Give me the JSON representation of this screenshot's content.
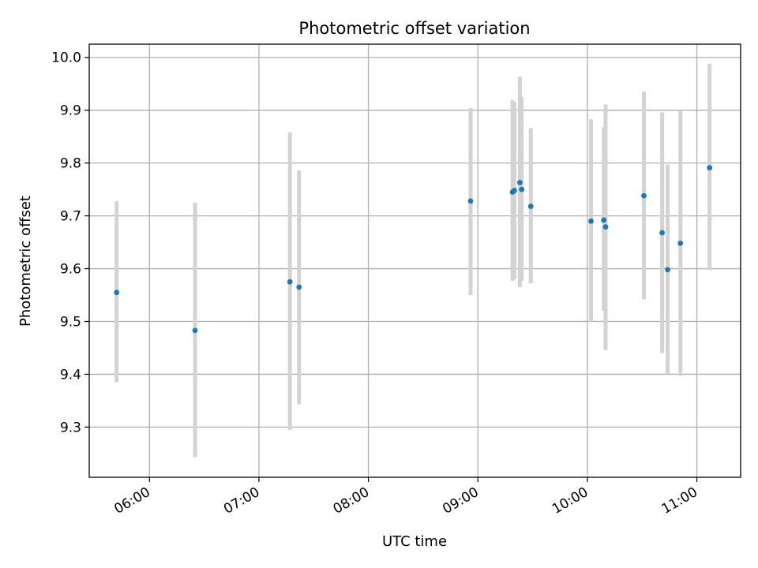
{
  "chart_data": {
    "type": "scatter",
    "title": "Photometric offset variation",
    "xlabel": "UTC time",
    "ylabel": "Photometric offset",
    "x_axis_kind": "time",
    "xlim": [
      "05:27",
      "11:24"
    ],
    "ylim": [
      9.205,
      10.025
    ],
    "grid": true,
    "x_ticks": [
      "06:00",
      "07:00",
      "08:00",
      "09:00",
      "10:00",
      "11:00"
    ],
    "y_ticks": [
      "9.3",
      "9.4",
      "9.5",
      "9.6",
      "9.7",
      "9.8",
      "9.9",
      "10.0"
    ],
    "colors": {
      "points": "#1f77b4",
      "error_bars": "#d3d3d3",
      "grid": "#b0b0b0"
    },
    "series": [
      {
        "points": [
          {
            "x": "05:42",
            "y": 9.555,
            "ylow": 9.385,
            "yhigh": 9.728
          },
          {
            "x": "06:25",
            "y": 9.483,
            "ylow": 9.243,
            "yhigh": 9.725
          },
          {
            "x": "07:17",
            "y": 9.575,
            "ylow": 9.295,
            "yhigh": 9.858
          },
          {
            "x": "07:22",
            "y": 9.565,
            "ylow": 9.343,
            "yhigh": 9.786
          },
          {
            "x": "08:56",
            "y": 9.728,
            "ylow": 9.55,
            "yhigh": 9.904
          },
          {
            "x": "09:19",
            "y": 9.745,
            "ylow": 9.577,
            "yhigh": 9.919
          },
          {
            "x": "09:20",
            "y": 9.748,
            "ylow": 9.58,
            "yhigh": 9.915
          },
          {
            "x": "09:23",
            "y": 9.763,
            "ylow": 9.565,
            "yhigh": 9.963
          },
          {
            "x": "09:24",
            "y": 9.75,
            "ylow": 9.577,
            "yhigh": 9.925
          },
          {
            "x": "09:29",
            "y": 9.718,
            "ylow": 9.572,
            "yhigh": 9.866
          },
          {
            "x": "10:02",
            "y": 9.69,
            "ylow": 9.5,
            "yhigh": 9.883
          },
          {
            "x": "10:09",
            "y": 9.692,
            "ylow": 9.52,
            "yhigh": 9.868
          },
          {
            "x": "10:10",
            "y": 9.679,
            "ylow": 9.446,
            "yhigh": 9.911
          },
          {
            "x": "10:31",
            "y": 9.738,
            "ylow": 9.542,
            "yhigh": 9.935
          },
          {
            "x": "10:41",
            "y": 9.668,
            "ylow": 9.44,
            "yhigh": 9.896
          },
          {
            "x": "10:44",
            "y": 9.598,
            "ylow": 9.4,
            "yhigh": 9.797
          },
          {
            "x": "10:51",
            "y": 9.648,
            "ylow": 9.397,
            "yhigh": 9.9
          },
          {
            "x": "11:07",
            "y": 9.791,
            "ylow": 9.597,
            "yhigh": 9.988
          }
        ]
      }
    ]
  }
}
